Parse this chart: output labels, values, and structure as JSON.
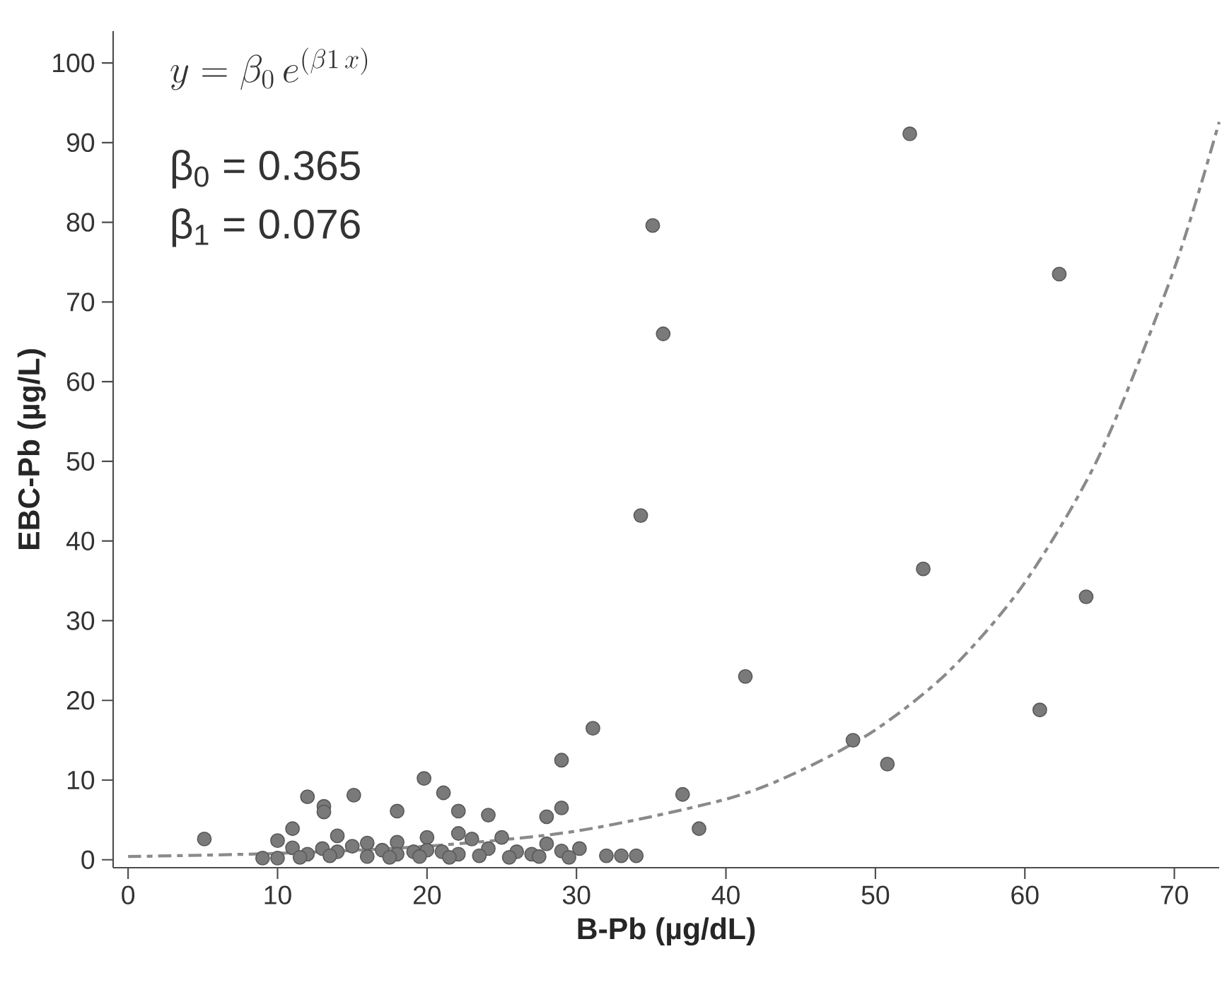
{
  "chart_data": {
    "type": "scatter",
    "xlabel": "B-Pb (µg/dL)",
    "ylabel": "EBC-Pb (µg/L)",
    "annotations": [
      "y = \\beta_{0}\\, e^{(\\beta 1\\, x)}",
      "β$_{0}$ = 0.365",
      "β$_{1}$ = 0.076"
    ],
    "xlim": [
      -1,
      73
    ],
    "ylim": [
      -1,
      104
    ],
    "xticks": [
      0,
      10,
      20,
      30,
      40,
      50,
      60,
      70
    ],
    "yticks": [
      0,
      10,
      20,
      30,
      40,
      50,
      60,
      70,
      80,
      90,
      100
    ],
    "grid": false,
    "marker": "circle",
    "series": [
      {
        "color": "#7a7a7a",
        "x": [
          5.1,
          31.1,
          29.0,
          19.8,
          21.1,
          12.0,
          15.1,
          13.1,
          13.1,
          18.0,
          22.1,
          24.1,
          29.0,
          28.0,
          11.0,
          37.1,
          38.2,
          30.2,
          32.0,
          33.0,
          34.0,
          9.0,
          10.0,
          10.0,
          11.0,
          12.0,
          13.0,
          14.0,
          14.0,
          15.0,
          16.0,
          16.0,
          17.0,
          18.0,
          18.0,
          19.1,
          20.0,
          20.0,
          21.0,
          22.1,
          22.1,
          23.0,
          24.1,
          25.0,
          26.0,
          27.0,
          28.0,
          29.0,
          11.5,
          13.5,
          17.5,
          19.5,
          21.5,
          23.5,
          25.5,
          27.5,
          29.5,
          52.3,
          35.1,
          62.3,
          35.8,
          34.3,
          53.2,
          64.1,
          41.3,
          61.0,
          48.5,
          50.8
        ],
        "values": [
          2.6,
          16.5,
          12.5,
          10.2,
          8.4,
          7.9,
          8.1,
          6.7,
          6.0,
          6.1,
          6.1,
          5.6,
          6.5,
          5.4,
          3.9,
          8.2,
          3.9,
          1.4,
          0.5,
          0.5,
          0.5,
          0.2,
          0.2,
          2.4,
          1.5,
          0.7,
          1.4,
          3.0,
          1.0,
          1.7,
          2.1,
          0.4,
          1.2,
          2.2,
          0.7,
          1.0,
          2.8,
          1.2,
          1.0,
          3.3,
          0.7,
          2.6,
          1.4,
          2.8,
          1.0,
          0.7,
          2.0,
          1.1,
          0.3,
          0.5,
          0.3,
          0.4,
          0.3,
          0.5,
          0.3,
          0.4,
          0.3,
          91.1,
          79.6,
          73.5,
          66.0,
          43.2,
          36.5,
          33.0,
          23.0,
          18.8,
          15.0,
          12.0
        ]
      },
      {
        "type": "line",
        "color": "#8a8a8a",
        "line_style": "dashed",
        "marker": "none",
        "x": [
          0,
          10,
          20,
          30,
          40,
          45,
          50,
          55,
          60,
          65,
          70,
          73
        ],
        "values": [
          0.4,
          0.8,
          1.7,
          3.6,
          7.6,
          11.2,
          16.3,
          23.8,
          34.8,
          50.8,
          74.2,
          92.6
        ]
      }
    ]
  }
}
